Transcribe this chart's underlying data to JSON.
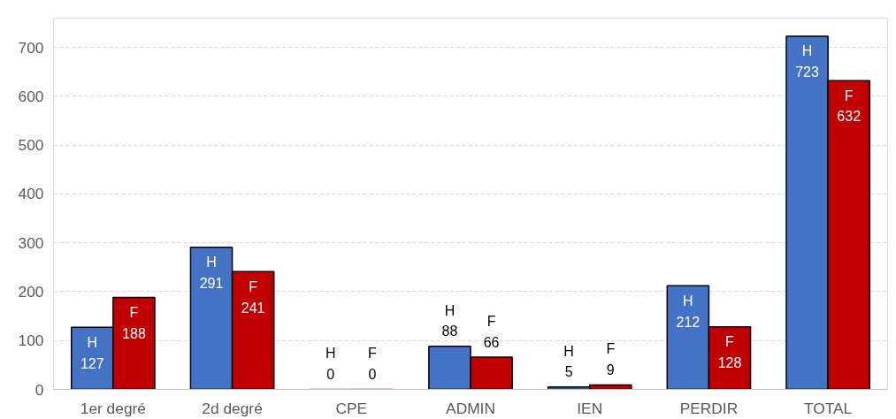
{
  "chart_data": {
    "type": "bar",
    "categories": [
      "1er degré",
      "2d degré",
      "CPE",
      "ADMIN",
      "IEN",
      "PERDIR",
      "TOTAL"
    ],
    "series": [
      {
        "name": "H",
        "color": "#4472c4",
        "values": [
          127,
          291,
          0,
          88,
          5,
          212,
          723
        ]
      },
      {
        "name": "F",
        "color": "#c00000",
        "values": [
          188,
          241,
          0,
          66,
          9,
          128,
          632
        ]
      }
    ],
    "ylim": [
      0,
      760
    ],
    "yticks": [
      0,
      100,
      200,
      300,
      400,
      500,
      600,
      700
    ],
    "grid": "y",
    "data_labels": true
  }
}
